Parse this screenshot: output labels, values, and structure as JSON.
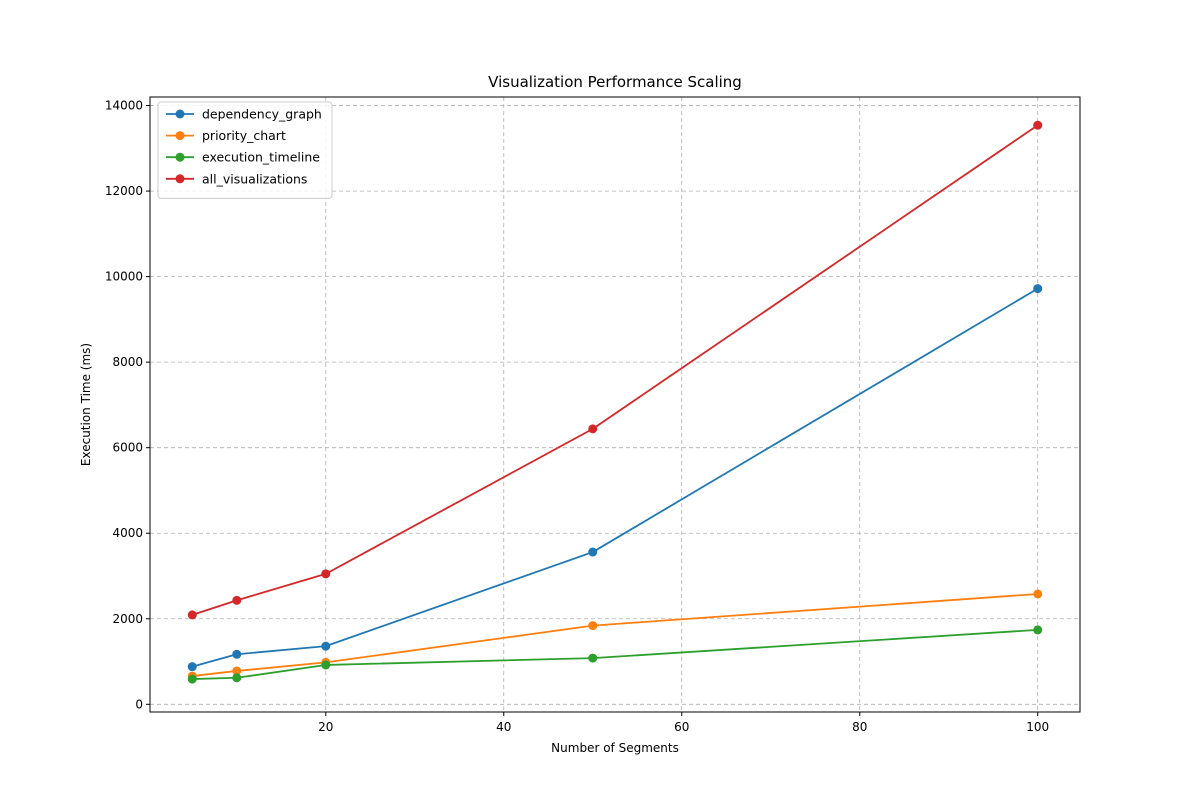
{
  "chart_data": {
    "type": "line",
    "title": "Visualization Performance Scaling",
    "xlabel": "Number of Segments",
    "ylabel": "Execution Time (ms)",
    "x": [
      5,
      10,
      20,
      50,
      100
    ],
    "xlim": [
      0.25,
      104.75
    ],
    "ylim": [
      -180,
      14200
    ],
    "xticks": [
      20,
      40,
      60,
      80,
      100
    ],
    "yticks": [
      0,
      2000,
      4000,
      6000,
      8000,
      10000,
      12000,
      14000
    ],
    "grid": true,
    "grid_style": "dashed",
    "legend_position": "upper left",
    "series": [
      {
        "name": "dependency_graph",
        "color": "#1f77b4",
        "values": [
          880,
          1170,
          1360,
          3560,
          9720
        ]
      },
      {
        "name": "priority_chart",
        "color": "#ff7f0e",
        "values": [
          660,
          780,
          980,
          1840,
          2580
        ]
      },
      {
        "name": "execution_timeline",
        "color": "#2ca02c",
        "values": [
          590,
          620,
          920,
          1080,
          1740
        ]
      },
      {
        "name": "all_visualizations",
        "color": "#d62728",
        "values": [
          2090,
          2430,
          3050,
          6440,
          13540
        ]
      }
    ]
  }
}
